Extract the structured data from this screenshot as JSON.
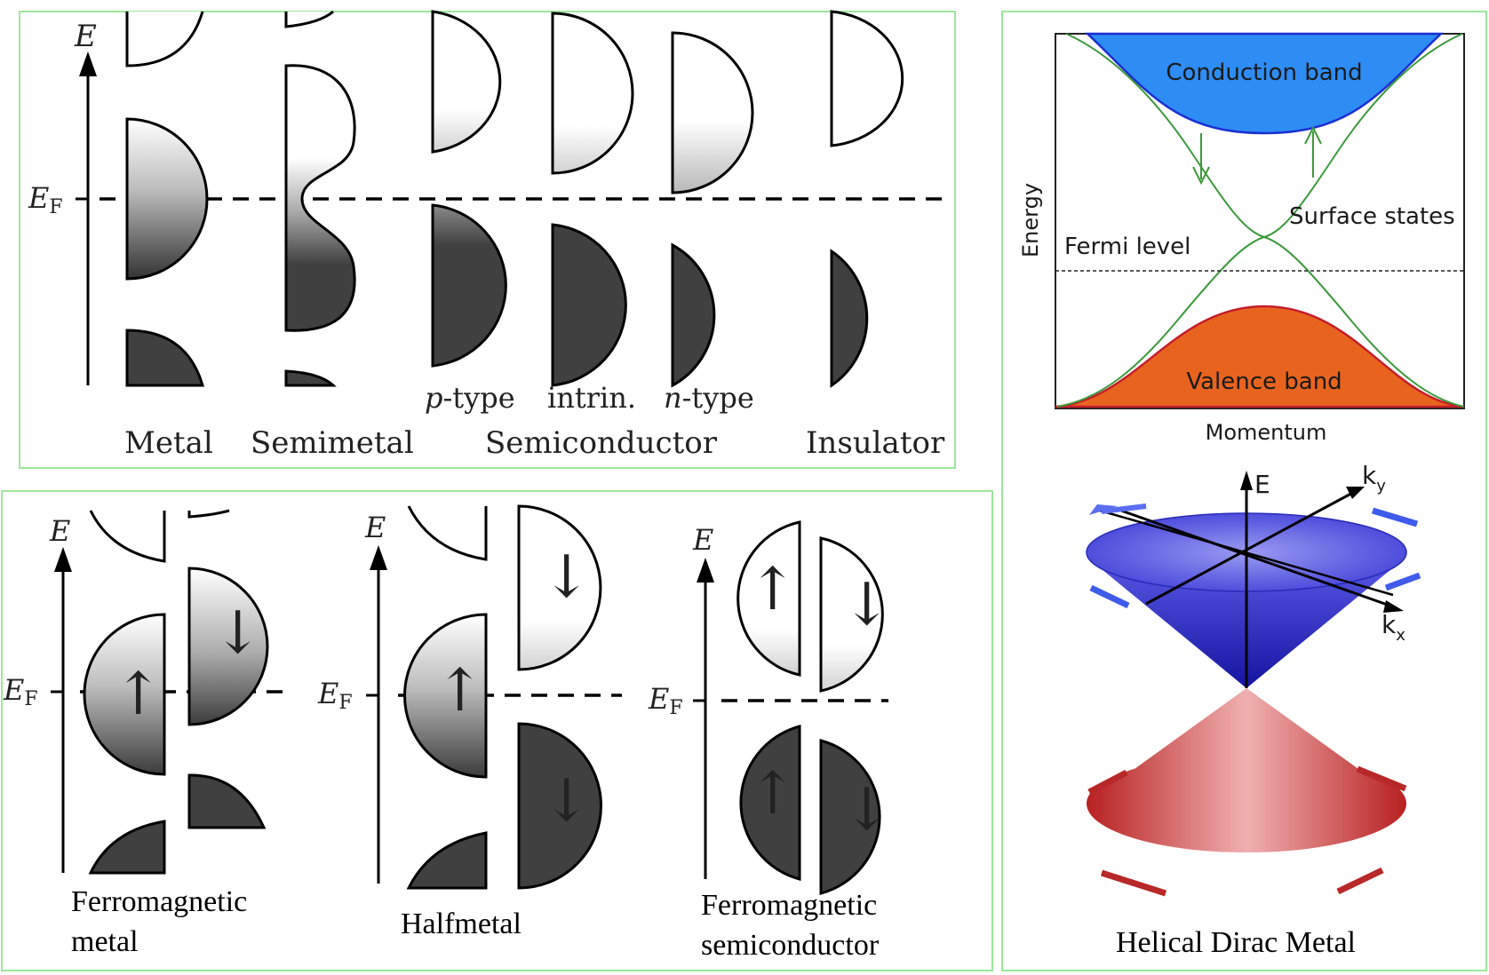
{
  "band_diagram": {
    "axis_energy": "E",
    "fermi_main": "E",
    "fermi_sub": "F",
    "types": {
      "metal": "Metal",
      "semimetal": "Semimetal",
      "semiconductor": "Semiconductor",
      "insulator": "Insulator"
    },
    "doping": {
      "p_letter": "p",
      "p_rest": "-type",
      "intrinsic": "intrin.",
      "n_letter": "n",
      "n_rest": "-type"
    }
  },
  "spin_diagram": {
    "axis_energy": "E",
    "fermi_main": "E",
    "fermi_sub": "F",
    "up_arrow": "↑",
    "down_arrow": "↓",
    "ferro_metal_line1": "Ferromagnetic",
    "ferro_metal_line2": "metal",
    "halfmetal": "Halfmetal",
    "ferro_semi_line1": "Ferromagnetic",
    "ferro_semi_line2": "semiconductor"
  },
  "dirac_panel": {
    "conduction_band": "Conduction band",
    "valence_band": "Valence band",
    "surface_states": "Surface states",
    "fermi_level": "Fermi level",
    "energy_label": "Energy",
    "momentum_label": "Momentum",
    "cone_e": "E",
    "cone_kx": "k",
    "cone_kx_sub": "x",
    "cone_ky": "k",
    "cone_ky_sub": "y",
    "title": "Helical Dirac Metal"
  },
  "colors": {
    "panel_border": "#9be89b",
    "filled_band": "#404040",
    "conduction_fill": "#2e8cf5",
    "valence_fill": "#e8641e",
    "surface_line": "#3a9a3a",
    "cone_top": "#3b3bd6",
    "cone_bottom": "#d23a3a"
  }
}
